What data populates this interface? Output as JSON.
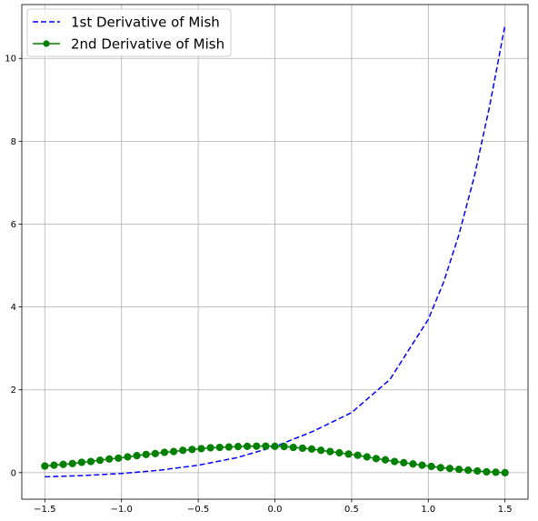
{
  "chart_data": {
    "type": "line",
    "title": "",
    "xlabel": "",
    "ylabel": "",
    "xlim": [
      -1.65,
      1.65
    ],
    "ylim": [
      -0.64,
      11.3
    ],
    "x_ticks": [
      -1.5,
      -1.0,
      -0.5,
      0.0,
      0.5,
      1.0,
      1.5
    ],
    "x_tick_labels": [
      "−1.5",
      "−1.0",
      "−0.5",
      "0.0",
      "0.5",
      "1.0",
      "1.5"
    ],
    "y_ticks": [
      0,
      2,
      4,
      6,
      8,
      10
    ],
    "y_tick_labels": [
      "0",
      "2",
      "4",
      "6",
      "8",
      "10"
    ],
    "grid": true,
    "legend_position": "top-left",
    "series": [
      {
        "name": "1st Derivative of Mish",
        "style": "dashed",
        "marker": "none",
        "color": "#0000ff",
        "x": [
          -1.5,
          -1.25,
          -1.0,
          -0.75,
          -0.5,
          -0.25,
          0.0,
          0.25,
          0.5,
          0.75,
          1.0,
          1.1,
          1.2,
          1.3,
          1.4,
          1.5
        ],
        "y": [
          -0.1,
          -0.07,
          -0.02,
          0.06,
          0.18,
          0.36,
          0.63,
          1.0,
          1.45,
          2.25,
          3.7,
          4.6,
          5.75,
          7.15,
          8.85,
          10.8
        ]
      },
      {
        "name": "2nd Derivative of Mish",
        "style": "solid",
        "marker": "circle",
        "color": "#008000",
        "x": [
          -1.5,
          -1.44,
          -1.38,
          -1.32,
          -1.26,
          -1.2,
          -1.14,
          -1.08,
          -1.02,
          -0.96,
          -0.9,
          -0.84,
          -0.78,
          -0.72,
          -0.66,
          -0.6,
          -0.54,
          -0.48,
          -0.42,
          -0.36,
          -0.3,
          -0.24,
          -0.18,
          -0.12,
          -0.06,
          0.0,
          0.06,
          0.12,
          0.18,
          0.24,
          0.3,
          0.36,
          0.42,
          0.48,
          0.54,
          0.6,
          0.66,
          0.72,
          0.78,
          0.84,
          0.9,
          0.96,
          1.02,
          1.08,
          1.14,
          1.2,
          1.26,
          1.32,
          1.38,
          1.44,
          1.5
        ],
        "y": [
          0.16,
          0.18,
          0.2,
          0.22,
          0.25,
          0.27,
          0.3,
          0.33,
          0.35,
          0.38,
          0.41,
          0.44,
          0.46,
          0.49,
          0.51,
          0.54,
          0.56,
          0.58,
          0.6,
          0.61,
          0.62,
          0.63,
          0.635,
          0.64,
          0.64,
          0.635,
          0.63,
          0.61,
          0.59,
          0.57,
          0.54,
          0.51,
          0.48,
          0.45,
          0.42,
          0.38,
          0.34,
          0.31,
          0.27,
          0.24,
          0.21,
          0.18,
          0.15,
          0.12,
          0.1,
          0.08,
          0.06,
          0.04,
          0.02,
          0.01,
          0.0
        ]
      }
    ]
  }
}
